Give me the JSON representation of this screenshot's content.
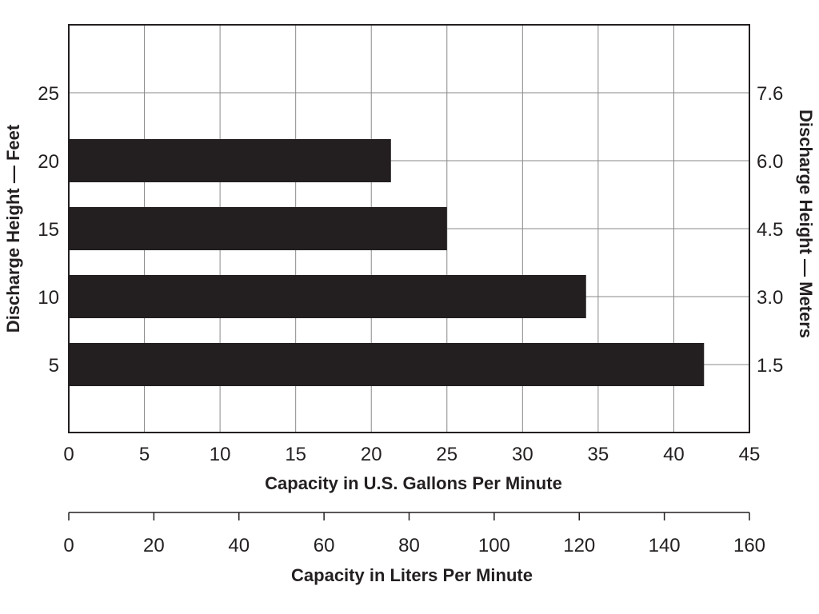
{
  "chart_data": {
    "type": "bar",
    "orientation": "horizontal",
    "categories": [
      "5",
      "10",
      "15",
      "20"
    ],
    "values": [
      42,
      34.2,
      25,
      21.3
    ],
    "xlabel": "Capacity in U.S. Gallons Per Minute",
    "xlim": [
      0,
      45
    ],
    "xticks": [
      "0",
      "5",
      "10",
      "15",
      "20",
      "25",
      "30",
      "35",
      "40",
      "45"
    ],
    "ylabel": "Discharge Height — Feet",
    "ylim": [
      0,
      30
    ],
    "yticks": [
      "5",
      "10",
      "15",
      "20",
      "25"
    ],
    "ylabel_right": "Discharge Height — Meters",
    "yticks_right": [
      "1.5",
      "3.0",
      "4.5",
      "6.0",
      "7.6"
    ],
    "xlabel_secondary": "Capacity in Liters Per Minute",
    "xlim_secondary": [
      0,
      160
    ],
    "xticks_secondary": [
      "0",
      "20",
      "40",
      "60",
      "80",
      "100",
      "120",
      "140",
      "160"
    ],
    "grid": true,
    "bar_color": "#231f20"
  }
}
